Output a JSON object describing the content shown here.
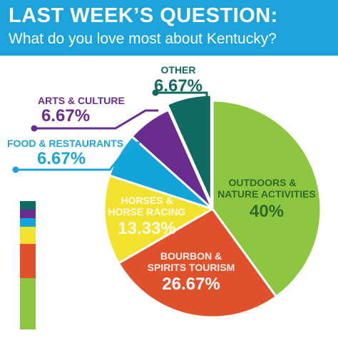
{
  "header": {
    "title": "LAST WEEK’S QUESTION:",
    "subtitle": "What do you love most about Kentucky?"
  },
  "chart_data": {
    "type": "pie",
    "title": "LAST WEEK’S QUESTION:",
    "subtitle": "What do you love most about Kentucky?",
    "slices": [
      {
        "label_lines": [
          "OUTDOORS &",
          "NATURE ACTIVITIES"
        ],
        "value": 40,
        "value_text": "40%",
        "color": "#8dc63f"
      },
      {
        "label_lines": [
          "BOURBON &",
          "SPIRITS TOURISM"
        ],
        "value": 26.67,
        "value_text": "26.67%",
        "color": "#e0512b"
      },
      {
        "label_lines": [
          "HORSES &",
          "HORSE RACING"
        ],
        "value": 13.33,
        "value_text": "13.33%",
        "color": "#f3e22d"
      },
      {
        "label_lines": [
          "FOOD & RESTAURANTS"
        ],
        "value": 6.67,
        "value_text": "6.67%",
        "color": "#12a5dc"
      },
      {
        "label_lines": [
          "ARTS & CULTURE"
        ],
        "value": 6.67,
        "value_text": "6.67%",
        "color": "#6a2c8e"
      },
      {
        "label_lines": [
          "OTHER"
        ],
        "value": 6.67,
        "value_text": "6.67%",
        "color": "#0f6b62"
      }
    ],
    "text_colors": {
      "outdoors": "#2f6a2b",
      "inside_light": "#ffffff",
      "horses": "#ffffff",
      "food": "#1ca3dc",
      "arts": "#6a2c8e",
      "other": "#0f6b62"
    }
  }
}
